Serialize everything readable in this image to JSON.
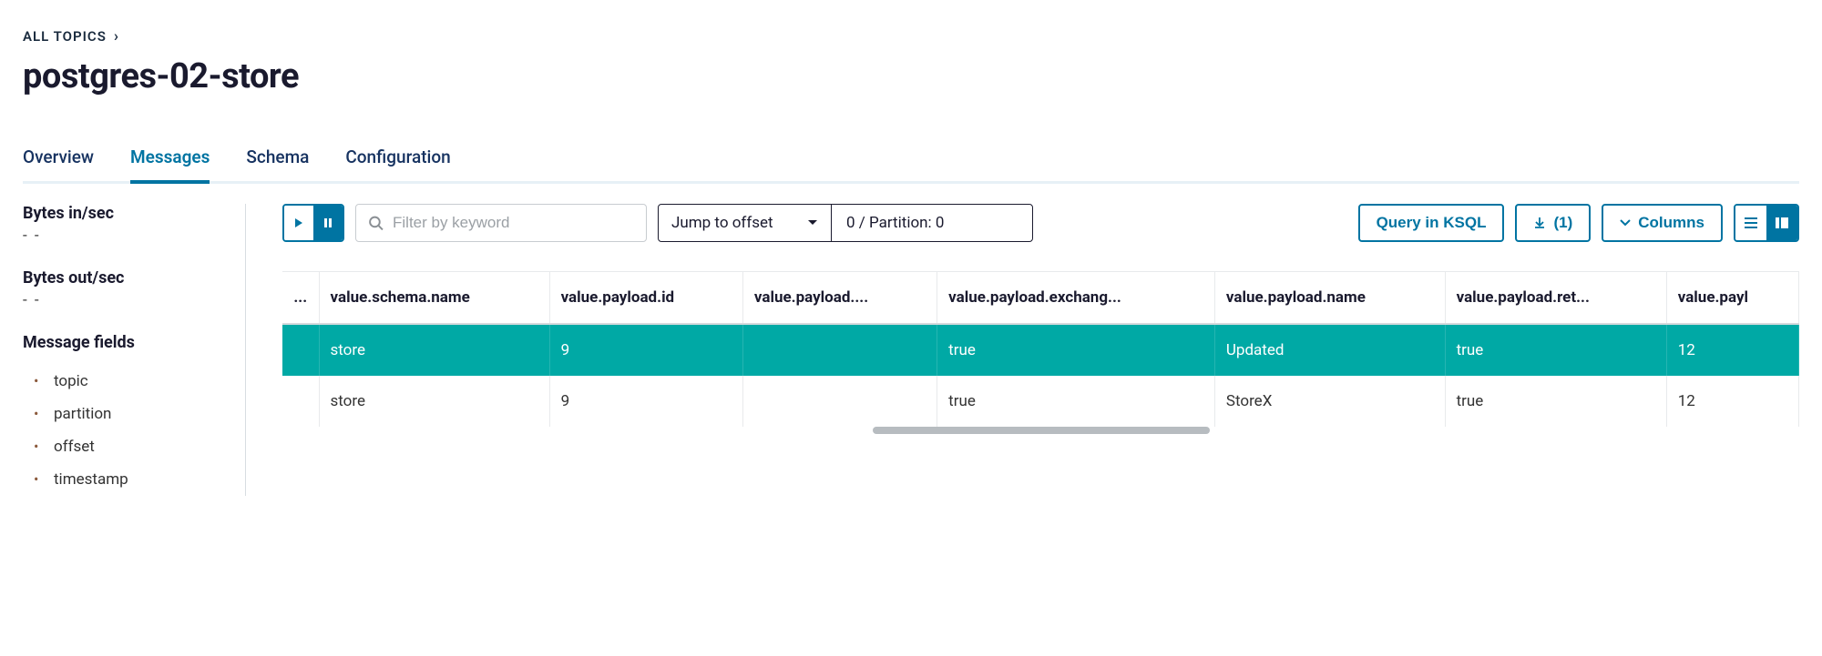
{
  "breadcrumb": {
    "label": "ALL TOPICS"
  },
  "page_title": "postgres-02-store",
  "tabs": [
    {
      "label": "Overview",
      "active": false
    },
    {
      "label": "Messages",
      "active": true
    },
    {
      "label": "Schema",
      "active": false
    },
    {
      "label": "Configuration",
      "active": false
    }
  ],
  "sidebar": {
    "stats": [
      {
        "label": "Bytes in/sec",
        "value": "- -"
      },
      {
        "label": "Bytes out/sec",
        "value": "- -"
      }
    ],
    "fields_title": "Message fields",
    "fields": [
      "topic",
      "partition",
      "offset",
      "timestamp"
    ]
  },
  "toolbar": {
    "filter_placeholder": "Filter by keyword",
    "offset_label": "Jump to offset",
    "partition_text": "0 / Partition: 0",
    "query_label": "Query in KSQL",
    "download_count": "(1)",
    "columns_label": "Columns"
  },
  "table": {
    "columns": [
      "...",
      "value.schema.name",
      "value.payload.id",
      "value.payload....",
      "value.payload.exchang...",
      "value.payload.name",
      "value.payload.ret...",
      "value.payl"
    ],
    "rows": [
      {
        "cells": [
          "",
          "store",
          "9",
          "",
          "true",
          "Updated",
          "true",
          "12"
        ],
        "highlight": true
      },
      {
        "cells": [
          "",
          "store",
          "9",
          "",
          "true",
          "StoreX",
          "true",
          "12"
        ],
        "highlight": false
      }
    ]
  },
  "colors": {
    "accent": "#0074a2",
    "highlight_row": "#00a9a5",
    "text": "#1a1a2e",
    "border": "#d6d9dc"
  }
}
